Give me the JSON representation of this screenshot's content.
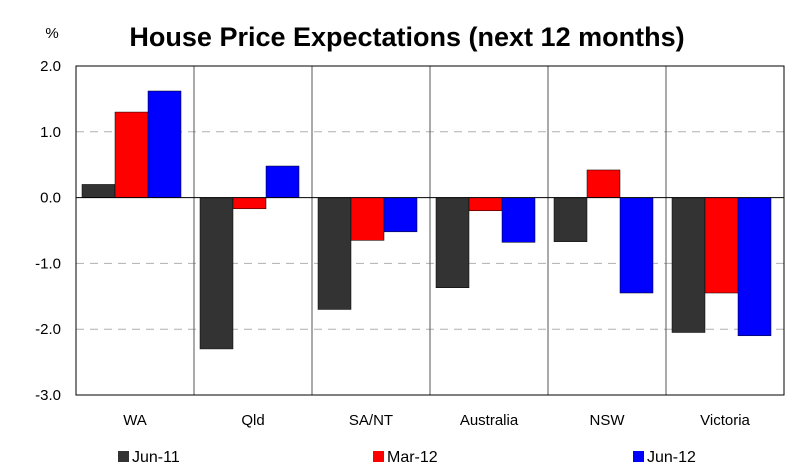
{
  "chart_data": {
    "type": "bar",
    "title": "House Price Expectations (next 12 months)",
    "unit_label": "%",
    "categories": [
      "WA",
      "Qld",
      "SA/NT",
      "Australia",
      "NSW",
      "Victoria"
    ],
    "series": [
      {
        "name": "Jun-11",
        "color": "#333333",
        "values": [
          0.2,
          -2.3,
          -1.7,
          -1.37,
          -0.67,
          -2.05
        ]
      },
      {
        "name": "Mar-12",
        "color": "#ff0000",
        "values": [
          1.3,
          -0.17,
          -0.65,
          -0.2,
          0.42,
          -1.45
        ]
      },
      {
        "name": "Jun-12",
        "color": "#0000ff",
        "values": [
          1.62,
          0.48,
          -0.52,
          -0.68,
          -1.45,
          -2.1
        ]
      }
    ],
    "ylim": [
      -3.0,
      2.0
    ],
    "yticks": [
      "2.0",
      "1.0",
      "0.0",
      "-1.0",
      "-2.0",
      "-3.0"
    ],
    "grid": true,
    "legend_position": "bottom"
  }
}
